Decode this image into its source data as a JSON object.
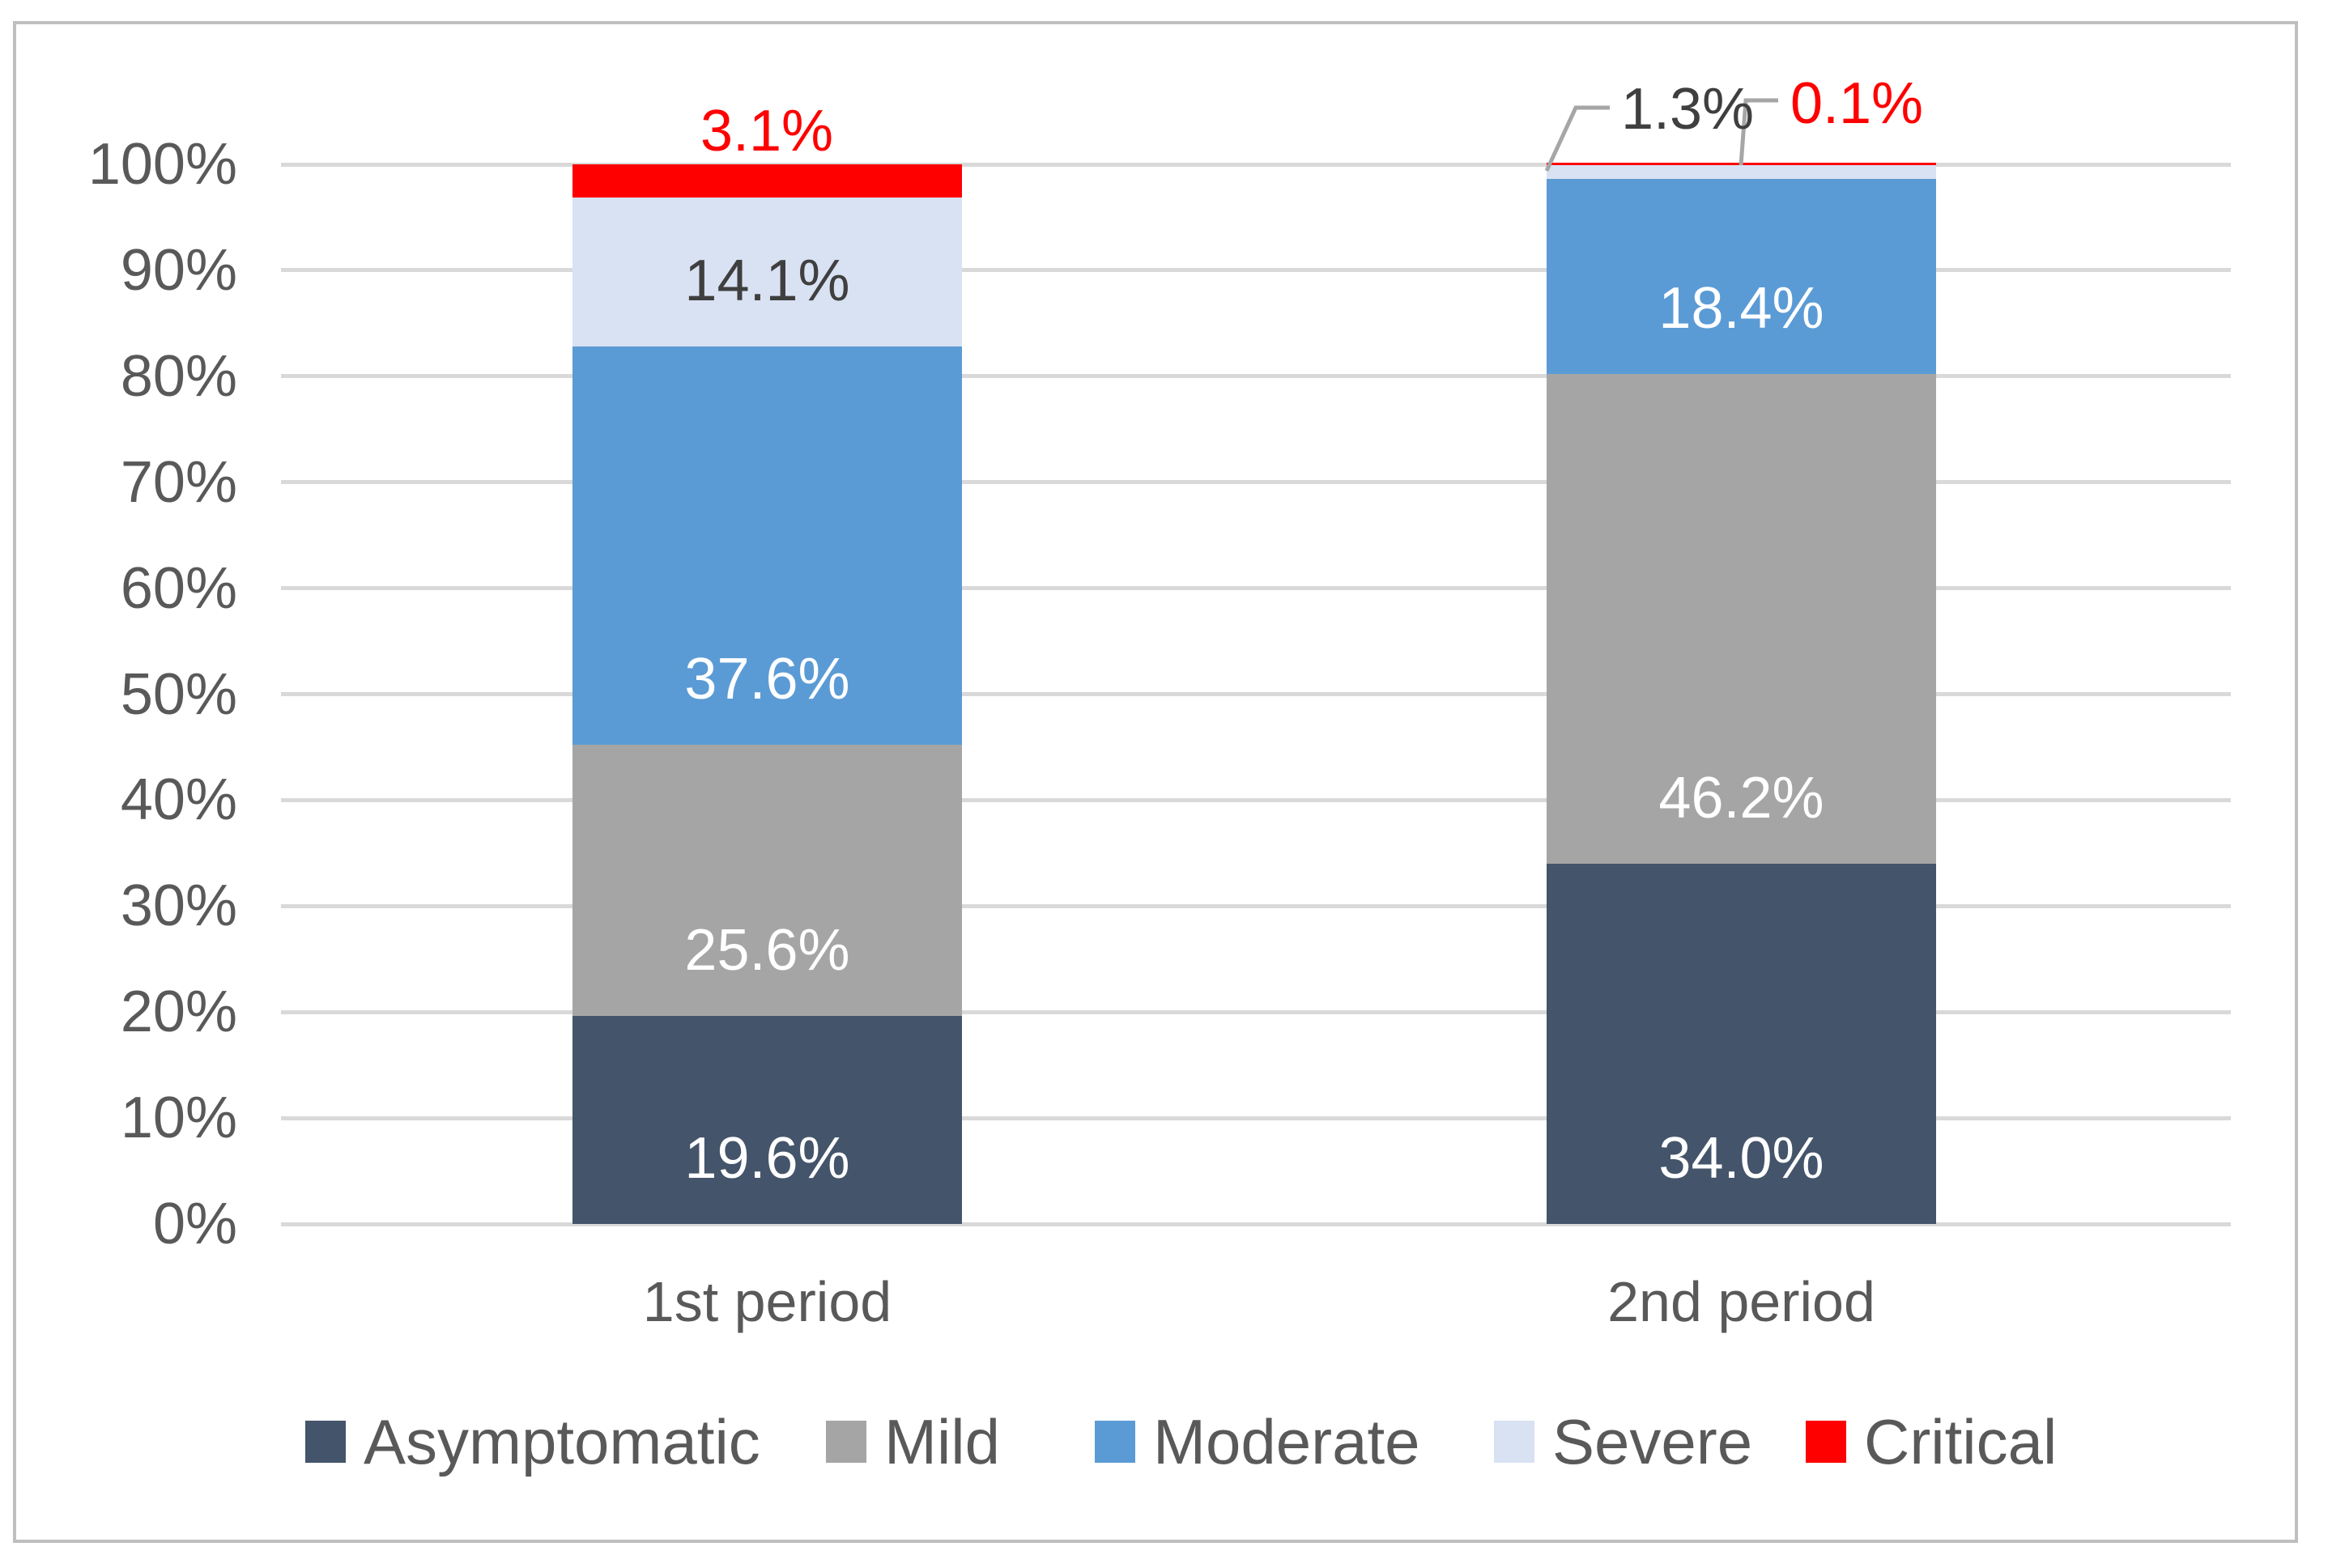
{
  "chart_data": {
    "type": "bar",
    "subtype": "stacked-100-percent-column",
    "title": "",
    "categories": [
      "1st period",
      "2nd period"
    ],
    "series": [
      {
        "name": "Asymptomatic",
        "color": "#44546A",
        "label_color": "#FFFFFF",
        "values": [
          19.6,
          34.0
        ],
        "data_labels": [
          "19.6%",
          "34.0%"
        ]
      },
      {
        "name": "Mild",
        "color": "#A5A5A5",
        "label_color": "#FFFFFF",
        "values": [
          25.6,
          46.2
        ],
        "data_labels": [
          "25.6%",
          "46.2%"
        ]
      },
      {
        "name": "Moderate",
        "color": "#5B9BD5",
        "label_color": "#FFFFFF",
        "values": [
          37.6,
          18.4
        ],
        "data_labels": [
          "37.6%",
          "18.4%"
        ]
      },
      {
        "name": "Severe",
        "color": "#D9E2F3",
        "label_color": "#3F3F3F",
        "values": [
          14.1,
          1.3
        ],
        "data_labels": [
          "14.1%",
          "1.3%"
        ]
      },
      {
        "name": "Critical",
        "color": "#FF0000",
        "label_color": "#FF0000",
        "values": [
          3.1,
          0.1
        ],
        "data_labels": [
          "3.1%",
          "0.1%"
        ]
      }
    ],
    "y_axis": {
      "min": 0,
      "max": 100,
      "tick_step": 10,
      "tick_labels": [
        "100%",
        "90%",
        "80%",
        "70%",
        "60%",
        "50%",
        "40%",
        "30%",
        "20%",
        "10%",
        "0%"
      ],
      "grid": true
    },
    "legend": {
      "position": "bottom",
      "entries": [
        "Asymptomatic",
        "Mild",
        "Moderate",
        "Severe",
        "Critical"
      ]
    },
    "callouts": [
      {
        "text": "3.1%",
        "color": "#FF0000",
        "series": "Critical",
        "category": "1st period",
        "has_leader": false
      },
      {
        "text": "1.3%",
        "color": "#3F3F3F",
        "series": "Severe",
        "category": "2nd period",
        "has_leader": true
      },
      {
        "text": "0.1%",
        "color": "#FF0000",
        "series": "Critical",
        "category": "2nd period",
        "has_leader": true
      }
    ],
    "style_colors": {
      "gridline": "#D9D9D9",
      "axis_text": "#595959",
      "frame_border": "#BFBFBF",
      "leader_line": "#A6A6A6",
      "background": "#FFFFFF"
    }
  }
}
